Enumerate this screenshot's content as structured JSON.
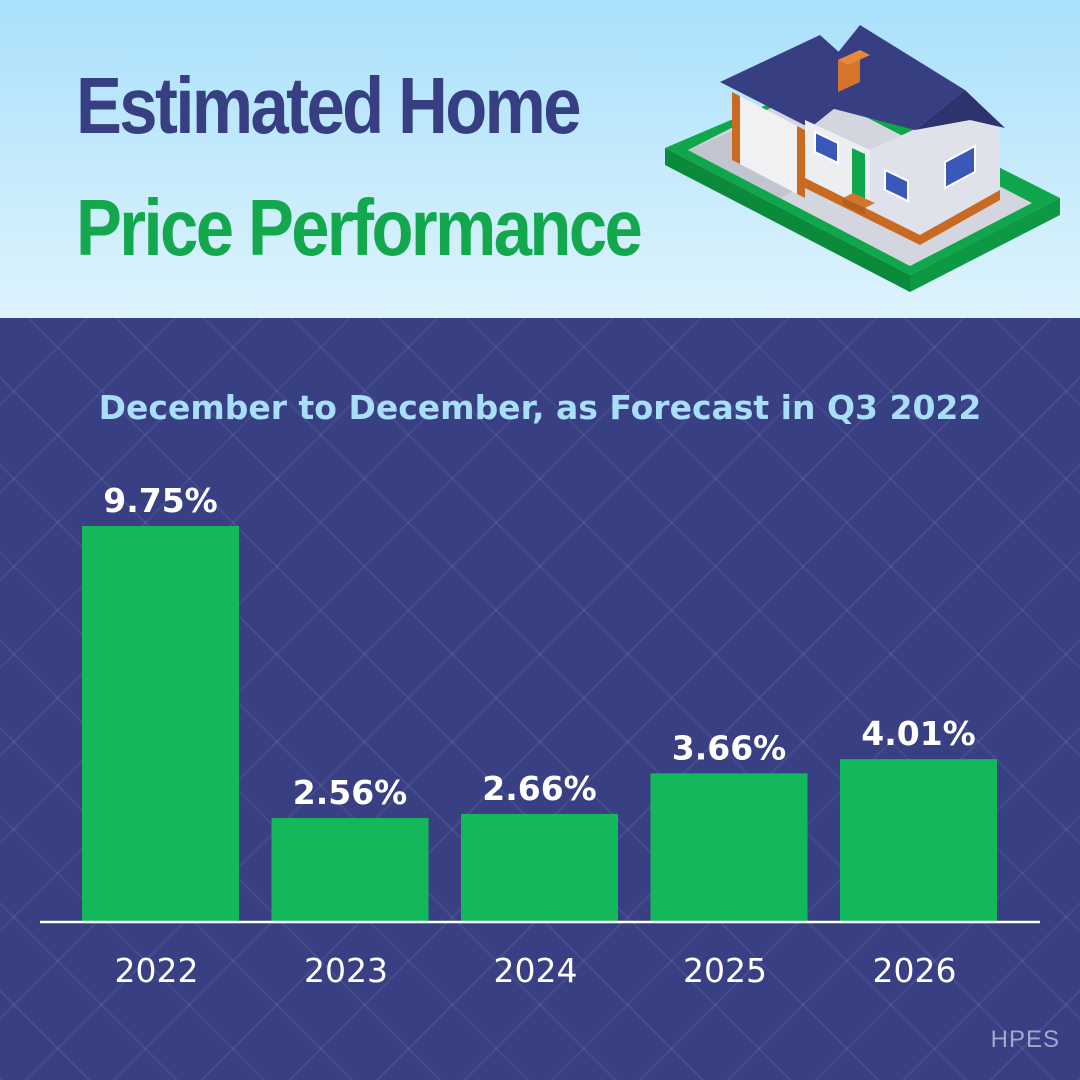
{
  "header": {
    "title_line1": "Estimated Home",
    "title_line2": "Price Performance"
  },
  "colors": {
    "title_dark": "#373f82",
    "title_green": "#13a84e",
    "panel_background": "#383f82",
    "bar": "#13b85a",
    "subtitle": "#a9def8"
  },
  "illustration": {
    "icon": "house-icon"
  },
  "chart_data": {
    "type": "bar",
    "title": "December to December, as Forecast in Q3 2022",
    "categories": [
      "2022",
      "2023",
      "2024",
      "2025",
      "2026"
    ],
    "values": [
      9.75,
      2.56,
      2.66,
      3.66,
      4.01
    ],
    "value_labels": [
      "9.75%",
      "2.56%",
      "2.66%",
      "3.66%",
      "4.01%"
    ],
    "ylim": [
      0,
      9.75
    ],
    "grid": false,
    "legend": "none"
  },
  "watermark": "HPES"
}
